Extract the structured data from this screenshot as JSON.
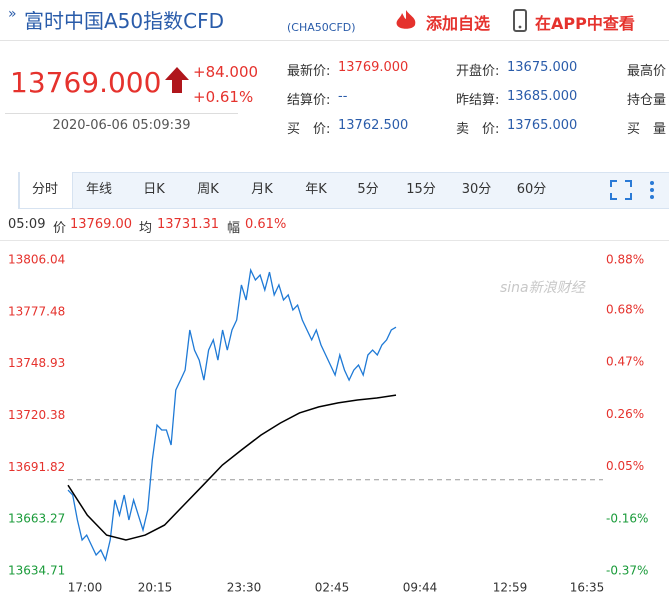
{
  "header": {
    "title": "富时中国A50指数CFD",
    "code": "(CHA50CFD)",
    "add": "添加自选",
    "app": "在APP中查看"
  },
  "quote": {
    "price": "13769.000",
    "change": "+84.000",
    "percent": "+0.61%",
    "time": "2020-06-06 05:09:39"
  },
  "fields": [
    {
      "label": "最新价:",
      "value": "13769.000"
    },
    {
      "label": "开盘价:",
      "value": "13675.000"
    },
    {
      "label": "最高价"
    },
    {
      "label": "结算价:",
      "value": "--"
    },
    {
      "label": "昨结算:",
      "value": "13685.000"
    },
    {
      "label": "持仓量"
    },
    {
      "label": "买　价:",
      "value": "13762.500"
    },
    {
      "label": "卖　价:",
      "value": "13765.000"
    },
    {
      "label": "买　量"
    }
  ],
  "tabs": [
    "分时",
    "年线",
    "日K",
    "周K",
    "月K",
    "年K",
    "5分",
    "15分",
    "30分",
    "60分"
  ],
  "info": {
    "time": "05:09",
    "price": "13769.00",
    "avg": "13731.31",
    "range_label": "幅",
    "range": "0.61%"
  },
  "watermark": "sina新浪财经",
  "chart_data": {
    "type": "line",
    "x_labels": [
      "17:00",
      "20:15",
      "23:30",
      "02:45",
      "09:44",
      "12:59",
      "16:35"
    ],
    "ylim": [
      13634.71,
      13806.04
    ],
    "yticks": [
      13806.04,
      13777.48,
      13748.93,
      13720.38,
      13691.82,
      13663.27,
      13634.71
    ],
    "y2lim": [
      -0.37,
      0.88
    ],
    "y2ticks": [
      {
        "value": 0.88,
        "label": "0.88%"
      },
      {
        "value": 0.68,
        "label": "0.68%"
      },
      {
        "value": 0.47,
        "label": "0.47%"
      },
      {
        "value": 0.26,
        "label": "0.26%"
      },
      {
        "value": 0.05,
        "label": "0.05%"
      },
      {
        "value": -0.16,
        "label": "-0.16%"
      },
      {
        "value": -0.37,
        "label": "-0.37%"
      }
    ],
    "baseline": 13685,
    "series": [
      {
        "name": "价",
        "color": "#1f7ad6",
        "values": [
          13679.3,
          13676.6,
          13662.8,
          13651.8,
          13654.5,
          13649.0,
          13643.5,
          13646.3,
          13640.8,
          13651.8,
          13673.8,
          13665.5,
          13676.6,
          13662.8,
          13673.8,
          13665.5,
          13657.3,
          13668.3,
          13695.8,
          13715.1,
          13712.4,
          13712.4,
          13704.1,
          13734.4,
          13739.9,
          13745.4,
          13767.5,
          13756.4,
          13750.9,
          13739.9,
          13756.4,
          13762.0,
          13750.9,
          13767.5,
          13756.4,
          13767.5,
          13773.0,
          13792.3,
          13784.0,
          13800.5,
          13795.0,
          13797.8,
          13789.5,
          13799.4,
          13786.8,
          13792.3,
          13784.0,
          13786.8,
          13778.5,
          13781.2,
          13773.0,
          13767.5,
          13762.0,
          13767.5,
          13759.2,
          13753.7,
          13748.2,
          13742.7,
          13753.7,
          13745.4,
          13739.9,
          13745.4,
          13748.2,
          13742.7,
          13753.7,
          13756.4,
          13753.7,
          13759.2,
          13762.0,
          13767.5,
          13769.0
        ]
      },
      {
        "name": "均",
        "color": "#000000",
        "values": [
          13682.0,
          13665.5,
          13654.5,
          13651.8,
          13654.5,
          13660.0,
          13671.0,
          13682.0,
          13693.1,
          13701.4,
          13709.6,
          13716.2,
          13721.8,
          13725.1,
          13727.3,
          13728.9,
          13730.0,
          13731.6
        ]
      }
    ]
  }
}
